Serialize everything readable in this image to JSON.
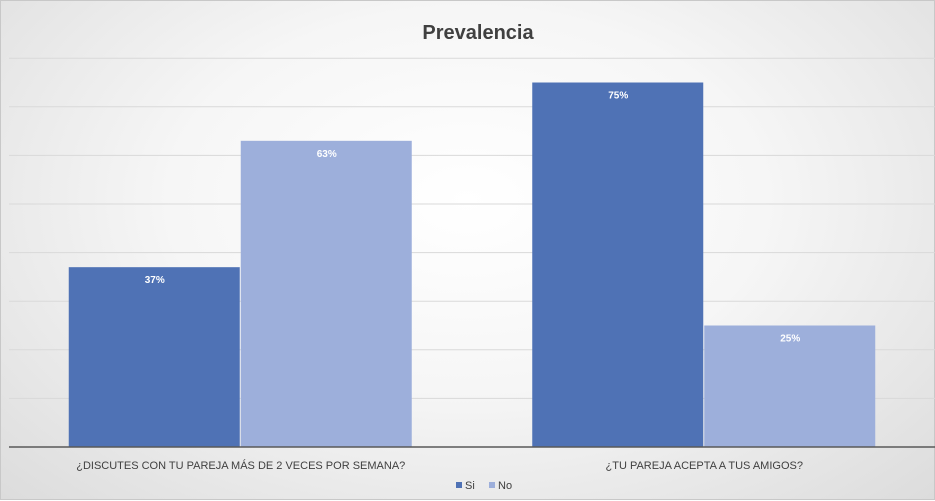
{
  "chart_data": {
    "type": "bar",
    "title": "Prevalencia",
    "categories": [
      "¿DISCUTES CON TU PAREJA MÁS DE 2 VECES POR SEMANA?",
      "¿TU PAREJA ACEPTA A TUS AMIGOS?"
    ],
    "series": [
      {
        "name": "Si",
        "values": [
          37,
          75
        ],
        "labels": [
          "37%",
          "75%"
        ],
        "color": "#4f72b5"
      },
      {
        "name": "No",
        "values": [
          63,
          25
        ],
        "labels": [
          "63%",
          "25%"
        ],
        "color": "#9dafdb"
      }
    ],
    "ylim": [
      0,
      80
    ],
    "grid": true,
    "legend": "bottom",
    "xlabel": "",
    "ylabel": ""
  }
}
